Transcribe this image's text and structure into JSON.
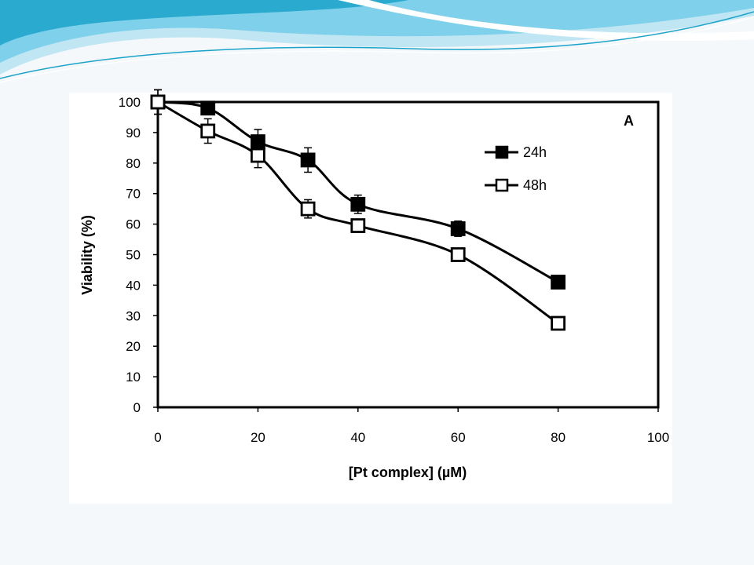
{
  "slide": {
    "banner_colors": {
      "light": "#bfe6f2",
      "mid": "#7fd0ea",
      "deep": "#1aa3c9",
      "white": "#ffffff"
    }
  },
  "chart_data": {
    "type": "line",
    "panel_label": "A",
    "xlabel": "[Pt complex] (µM)",
    "ylabel": "Viability (%)",
    "xlim": [
      0,
      100
    ],
    "ylim": [
      0,
      100
    ],
    "x_ticks": [
      0,
      20,
      40,
      60,
      80,
      100
    ],
    "y_ticks": [
      0,
      10,
      20,
      30,
      40,
      50,
      60,
      70,
      80,
      90,
      100
    ],
    "legend_position": "top-right",
    "grid": false,
    "series": [
      {
        "name": "24h",
        "marker": "filled-square",
        "color": "#000000",
        "x": [
          0,
          10,
          20,
          30,
          40,
          60,
          80
        ],
        "y": [
          100,
          98,
          87,
          81,
          66.5,
          58.5,
          41
        ],
        "error": [
          4,
          2,
          4,
          4,
          3,
          2.5,
          1.5
        ]
      },
      {
        "name": "48h",
        "marker": "open-square",
        "color": "#000000",
        "x": [
          0,
          10,
          20,
          30,
          40,
          60,
          80
        ],
        "y": [
          100,
          90.5,
          82.5,
          65,
          59.5,
          50,
          27.5
        ],
        "error": [
          4,
          4,
          4,
          3,
          2,
          1,
          1
        ]
      }
    ]
  }
}
